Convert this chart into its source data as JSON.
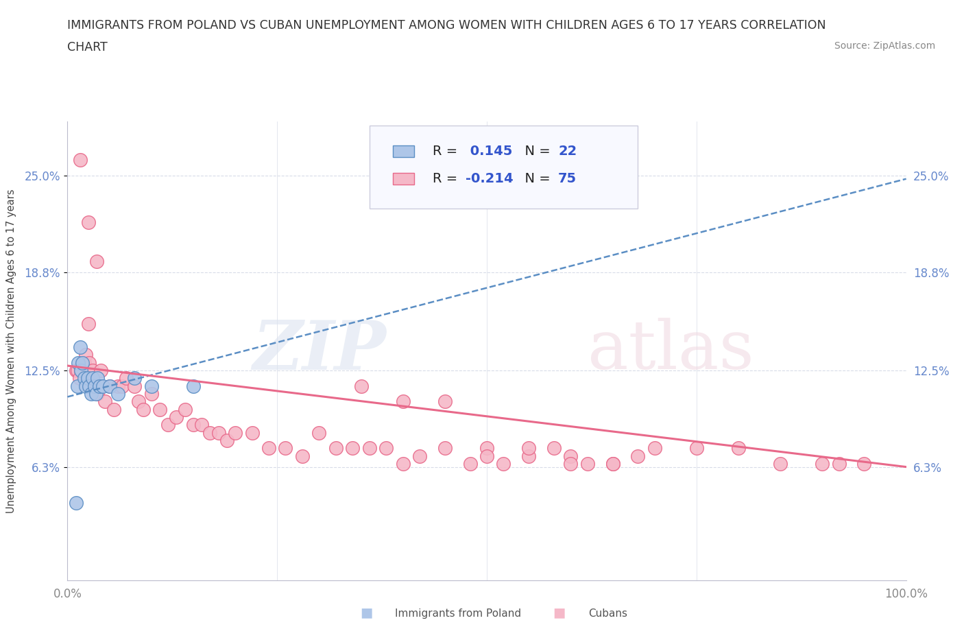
{
  "title_line1": "IMMIGRANTS FROM POLAND VS CUBAN UNEMPLOYMENT AMONG WOMEN WITH CHILDREN AGES 6 TO 17 YEARS CORRELATION",
  "title_line2": "CHART",
  "source": "Source: ZipAtlas.com",
  "r_poland": 0.145,
  "n_poland": 22,
  "r_cuban": -0.214,
  "n_cuban": 75,
  "xlim": [
    0.0,
    1.0
  ],
  "ylim": [
    -0.01,
    0.285
  ],
  "yticks": [
    0.063,
    0.125,
    0.188,
    0.25
  ],
  "ytick_labels": [
    "6.3%",
    "12.5%",
    "18.8%",
    "25.0%"
  ],
  "xticks": [
    0.0,
    1.0
  ],
  "xtick_labels": [
    "0.0%",
    "100.0%"
  ],
  "poland_fill_color": "#aec6e8",
  "poland_edge_color": "#5b8ec4",
  "cuban_fill_color": "#f5b8c8",
  "cuban_edge_color": "#e8698a",
  "poland_line_color": "#5b8ec4",
  "cuban_line_color": "#e8698a",
  "background_color": "#ffffff",
  "grid_color": "#d8dce8",
  "legend_r_color": "#3355cc",
  "legend_n_color": "#222222",
  "poland_scatter_x": [
    0.01,
    0.012,
    0.013,
    0.015,
    0.016,
    0.018,
    0.02,
    0.022,
    0.024,
    0.026,
    0.028,
    0.03,
    0.032,
    0.034,
    0.036,
    0.038,
    0.042,
    0.05,
    0.06,
    0.08,
    0.1,
    0.15
  ],
  "poland_scatter_y": [
    0.04,
    0.115,
    0.13,
    0.14,
    0.125,
    0.13,
    0.12,
    0.115,
    0.12,
    0.115,
    0.11,
    0.12,
    0.115,
    0.11,
    0.12,
    0.115,
    0.115,
    0.115,
    0.11,
    0.12,
    0.115,
    0.115
  ],
  "cuban_scatter_x": [
    0.01,
    0.012,
    0.014,
    0.016,
    0.018,
    0.02,
    0.022,
    0.024,
    0.026,
    0.028,
    0.03,
    0.032,
    0.034,
    0.036,
    0.038,
    0.04,
    0.045,
    0.05,
    0.055,
    0.06,
    0.065,
    0.07,
    0.08,
    0.085,
    0.09,
    0.1,
    0.11,
    0.12,
    0.13,
    0.14,
    0.15,
    0.16,
    0.17,
    0.18,
    0.19,
    0.2,
    0.22,
    0.24,
    0.26,
    0.28,
    0.3,
    0.32,
    0.34,
    0.36,
    0.38,
    0.4,
    0.42,
    0.45,
    0.48,
    0.5,
    0.52,
    0.55,
    0.58,
    0.6,
    0.62,
    0.65,
    0.68,
    0.7,
    0.75,
    0.8,
    0.85,
    0.9,
    0.92,
    0.95,
    0.5,
    0.55,
    0.6,
    0.65,
    0.35,
    0.4,
    0.45,
    0.015,
    0.025,
    0.035,
    0.025
  ],
  "cuban_scatter_y": [
    0.125,
    0.125,
    0.12,
    0.125,
    0.13,
    0.13,
    0.135,
    0.125,
    0.13,
    0.12,
    0.125,
    0.115,
    0.115,
    0.11,
    0.115,
    0.125,
    0.105,
    0.115,
    0.1,
    0.115,
    0.115,
    0.12,
    0.115,
    0.105,
    0.1,
    0.11,
    0.1,
    0.09,
    0.095,
    0.1,
    0.09,
    0.09,
    0.085,
    0.085,
    0.08,
    0.085,
    0.085,
    0.075,
    0.075,
    0.07,
    0.085,
    0.075,
    0.075,
    0.075,
    0.075,
    0.065,
    0.07,
    0.075,
    0.065,
    0.075,
    0.065,
    0.07,
    0.075,
    0.07,
    0.065,
    0.065,
    0.07,
    0.075,
    0.075,
    0.075,
    0.065,
    0.065,
    0.065,
    0.065,
    0.07,
    0.075,
    0.065,
    0.065,
    0.115,
    0.105,
    0.105,
    0.26,
    0.22,
    0.195,
    0.155
  ],
  "poland_line_x0": 0.0,
  "poland_line_x1": 1.0,
  "poland_line_y0": 0.108,
  "poland_line_y1": 0.248,
  "cuban_line_x0": 0.0,
  "cuban_line_x1": 1.0,
  "cuban_line_y0": 0.128,
  "cuban_line_y1": 0.063
}
